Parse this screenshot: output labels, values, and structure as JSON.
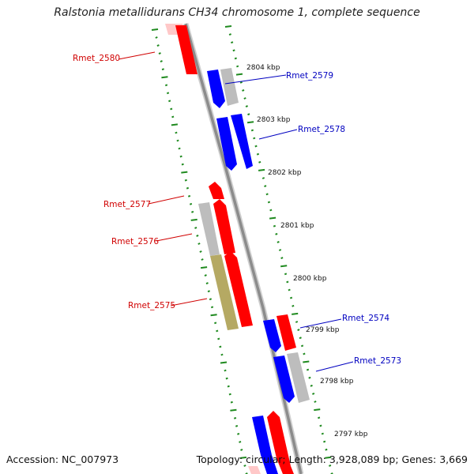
{
  "title": "Ralstonia metallidurans CH34 chromosome 1, complete sequence",
  "footer": {
    "accession": "Accession: NC_007973",
    "summary": "Topology: circular; Length: 3,928,089 bp; Genes: 3,669"
  },
  "colors": {
    "forward_gene": "#ff0000",
    "reverse_gene": "#0000ff",
    "other_gene": "#bdbdbd",
    "highlight_gene": "#b5a963",
    "tick": "#1f8a1f",
    "backbone": "#8c8c8c"
  },
  "kbp_labels": [
    "2804 kbp",
    "2803 kbp",
    "2802 kbp",
    "2801 kbp",
    "2800 kbp",
    "2799 kbp",
    "2798 kbp",
    "2797 kbp"
  ],
  "gene_labels": {
    "rmet_2580": "Rmet_2580",
    "rmet_2579": "Rmet_2579",
    "rmet_2578": "Rmet_2578",
    "rmet_2577": "Rmet_2577",
    "rmet_2576": "Rmet_2576",
    "rmet_2575": "Rmet_2575",
    "rmet_2574": "Rmet_2574",
    "rmet_2573": "Rmet_2573"
  }
}
